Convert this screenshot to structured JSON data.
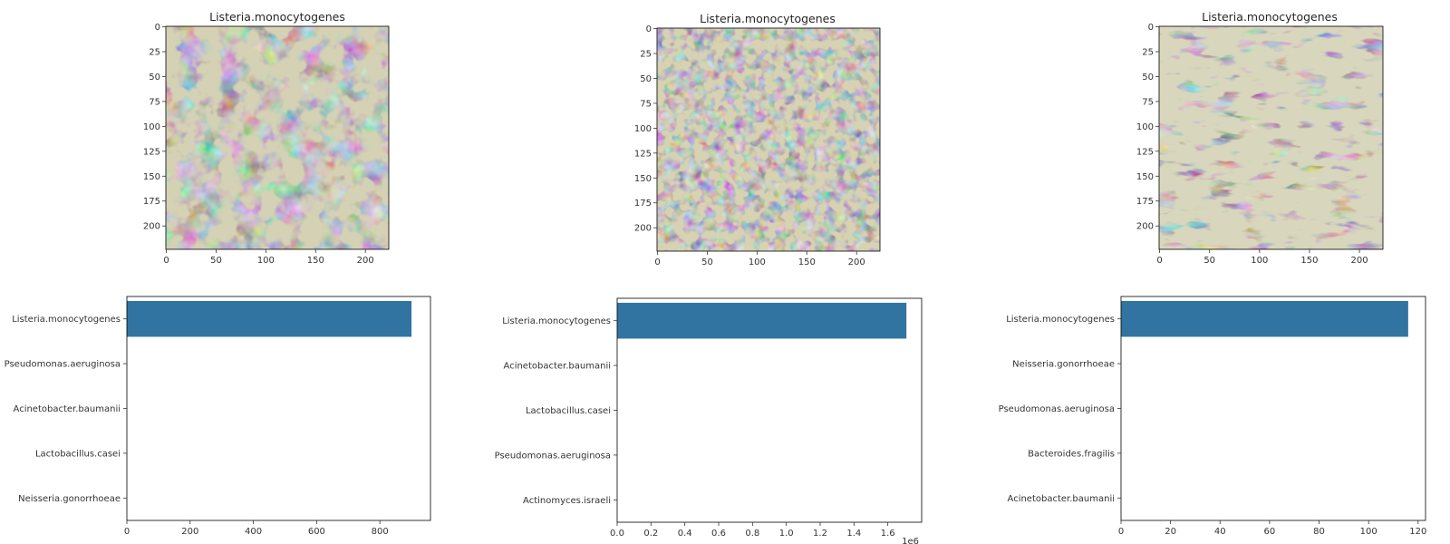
{
  "images": [
    {
      "title": "Listeria.monocytogenes",
      "xticks": [
        "0",
        "50",
        "100",
        "150",
        "200"
      ],
      "yticks": [
        "0",
        "25",
        "50",
        "75",
        "100",
        "125",
        "150",
        "175",
        "200"
      ],
      "texture": "blobs",
      "background": "#d4d1b4",
      "stain": "#a8509c"
    },
    {
      "title": "Listeria.monocytogenes",
      "xticks": [
        "0",
        "50",
        "100",
        "150",
        "200"
      ],
      "yticks": [
        "0",
        "25",
        "50",
        "75",
        "100",
        "125",
        "150",
        "175",
        "200"
      ],
      "texture": "dense-mesh",
      "background": "#d6d2b2",
      "stain": "#9e3f8c"
    },
    {
      "title": "Listeria.monocytogenes",
      "xticks": [
        "0",
        "50",
        "100",
        "150",
        "200"
      ],
      "yticks": [
        "0",
        "25",
        "50",
        "75",
        "100",
        "125",
        "150",
        "175",
        "200"
      ],
      "texture": "sparse-bands",
      "background": "#d8d6bc",
      "stain": "#b0479e"
    }
  ],
  "chart_data": [
    {
      "type": "bar",
      "orientation": "horizontal",
      "categories": [
        "Listeria.monocytogenes",
        "Pseudomonas.aeruginosa",
        "Acinetobacter.baumanii",
        "Lactobacillus.casei",
        "Neisseria.gonorrhoeae"
      ],
      "values": [
        900,
        0,
        0,
        0,
        0
      ],
      "xticks": [
        "0",
        "200",
        "400",
        "600",
        "800"
      ],
      "xlim": [
        0,
        960
      ],
      "color": "#3274a1"
    },
    {
      "type": "bar",
      "orientation": "horizontal",
      "categories": [
        "Listeria.monocytogenes",
        "Acinetobacter.baumanii",
        "Lactobacillus.casei",
        "Pseudomonas.aeruginosa",
        "Actinomyces.israeli"
      ],
      "values": [
        1.71,
        0,
        0,
        0,
        0
      ],
      "xticks": [
        "0.0",
        "0.2",
        "0.4",
        "0.6",
        "0.8",
        "1.0",
        "1.2",
        "1.4",
        "1.6"
      ],
      "xlim": [
        0,
        1.8
      ],
      "scale_label": "1e6",
      "color": "#3274a1"
    },
    {
      "type": "bar",
      "orientation": "horizontal",
      "categories": [
        "Listeria.monocytogenes",
        "Neisseria.gonorrhoeae",
        "Pseudomonas.aeruginosa",
        "Bacteroides.fragilis",
        "Acinetobacter.baumanii"
      ],
      "values": [
        116,
        0,
        0,
        0,
        0
      ],
      "xticks": [
        "0",
        "20",
        "40",
        "60",
        "80",
        "100",
        "120"
      ],
      "xlim": [
        0,
        123
      ],
      "color": "#3274a1"
    }
  ]
}
